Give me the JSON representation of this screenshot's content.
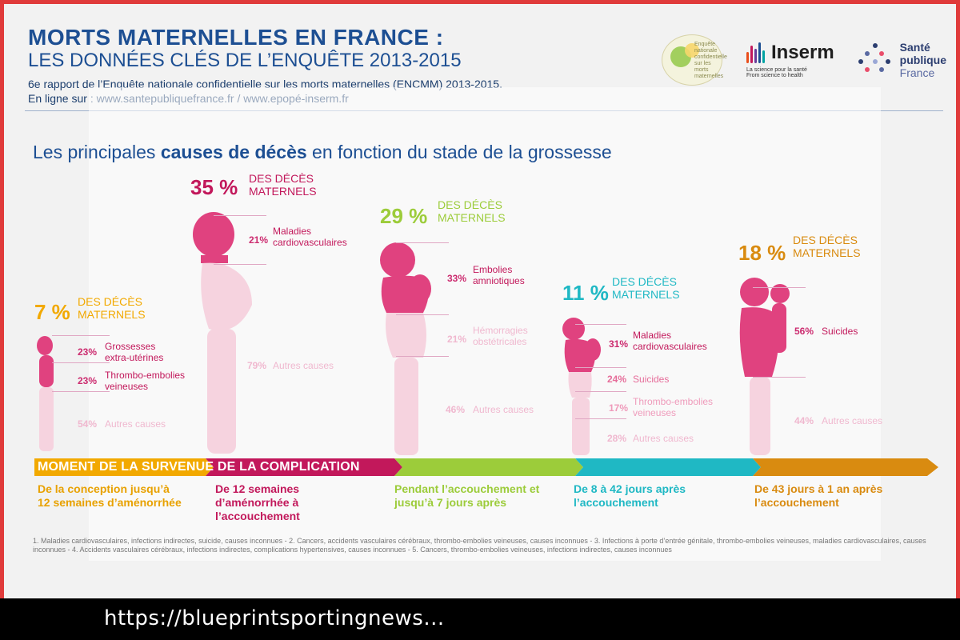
{
  "header": {
    "title_main": "MORTS MATERNELLES EN FRANCE :",
    "title_sub": "LES DONNÉES CLÉS DE L’ENQUÊTE 2013-2015",
    "meta_line_1": "6e rapport de l’Enquête nationale confidentielle sur les morts maternelles (ENCMM) 2013-2015.",
    "meta_line_2": "En ligne sur : www.santepubliquefrance.fr / www.epopé-inserm.fr"
  },
  "logos": {
    "enquete_text": "Enquête nationale confidentielle sur les morts maternelles",
    "inserm_name": "Inserm",
    "inserm_tag_1": "La science pour la santé",
    "inserm_tag_2": "From science to health",
    "spf_line1": "Santé",
    "spf_line2": "publique",
    "spf_line3": "France"
  },
  "section": {
    "title_prefix": "Les principales ",
    "title_bold": "causes de décès",
    "title_suffix": " en fonction du stade de la grossesse"
  },
  "stages": [
    {
      "percent": "7 %",
      "label_line1": "DES DÉCÈS",
      "label_line2": "MATERNELS",
      "color": "#f2a900",
      "causes": [
        {
          "pct": "23%",
          "text": "Grossesses extra-utérines"
        },
        {
          "pct": "23%",
          "text": "Thrombo-embolies veineuses"
        },
        {
          "pct": "54%",
          "text": "Autres causes"
        }
      ],
      "stage_text": "De la conception jusqu’à 12 semaines d’aménorrhée"
    },
    {
      "percent": "35 %",
      "label_line1": "DES DÉCÈS",
      "label_line2": "MATERNELS",
      "color": "#c2185b",
      "causes": [
        {
          "pct": "21%",
          "text": "Maladies cardiovasculaires"
        },
        {
          "pct": "79%",
          "text": "Autres causes"
        }
      ],
      "stage_text": "De 12 semaines d’aménorrhée à l’accouchement"
    },
    {
      "percent": "29 %",
      "label_line1": "DES DÉCÈS",
      "label_line2": "MATERNELS",
      "color": "#9ccc3a",
      "causes": [
        {
          "pct": "33%",
          "text": "Embolies amniotiques"
        },
        {
          "pct": "21%",
          "text": "Hémorragies obstétricales"
        },
        {
          "pct": "46%",
          "text": "Autres causes"
        }
      ],
      "stage_text": "Pendant l’accouchement et jusqu’à 7 jours après"
    },
    {
      "percent": "11 %",
      "label_line1": "DES DÉCÈS",
      "label_line2": "MATERNELS",
      "color": "#1fb8c4",
      "causes": [
        {
          "pct": "31%",
          "text": "Maladies cardiovasculaires"
        },
        {
          "pct": "24%",
          "text": "Suicides"
        },
        {
          "pct": "17%",
          "text": "Thrombo-embolies veineuses"
        },
        {
          "pct": "28%",
          "text": "Autres causes"
        }
      ],
      "stage_text": "De 8 à 42 jours après l’accouchement"
    },
    {
      "percent": "18 %",
      "label_line1": "DES DÉCÈS",
      "label_line2": "MATERNELS",
      "color": "#d98b10",
      "causes": [
        {
          "pct": "56%",
          "text": "Suicides"
        },
        {
          "pct": "44%",
          "text": "Autres causes"
        }
      ],
      "stage_text": "De 43 jours à 1 an après l’accouchement"
    }
  ],
  "timeline": {
    "label": "MOMENT DE LA SURVENUE DE LA COMPLICATION",
    "segment_colors": [
      "#f2a900",
      "#c2185b",
      "#9ccc3a",
      "#1fb8c4",
      "#d98b10"
    ]
  },
  "footnote": "1. Maladies cardiovasculaires, infections indirectes, suicide, causes inconnues - 2. Cancers, accidents vasculaires cérébraux, thrombo-embolies veineuses, causes inconnues - 3. Infections à porte d’entrée génitale, thrombo-embolies veineuses, maladies cardiovasculaires, causes inconnues - 4. Accidents vasculaires cérébraux, infections indirectes, complications hypertensives, causes inconnues - 5. Cancers, thrombo-embolies veineuses, infections indirectes, causes inconnues",
  "overlay": {
    "url_text": "https://blueprintsportingnews..."
  }
}
